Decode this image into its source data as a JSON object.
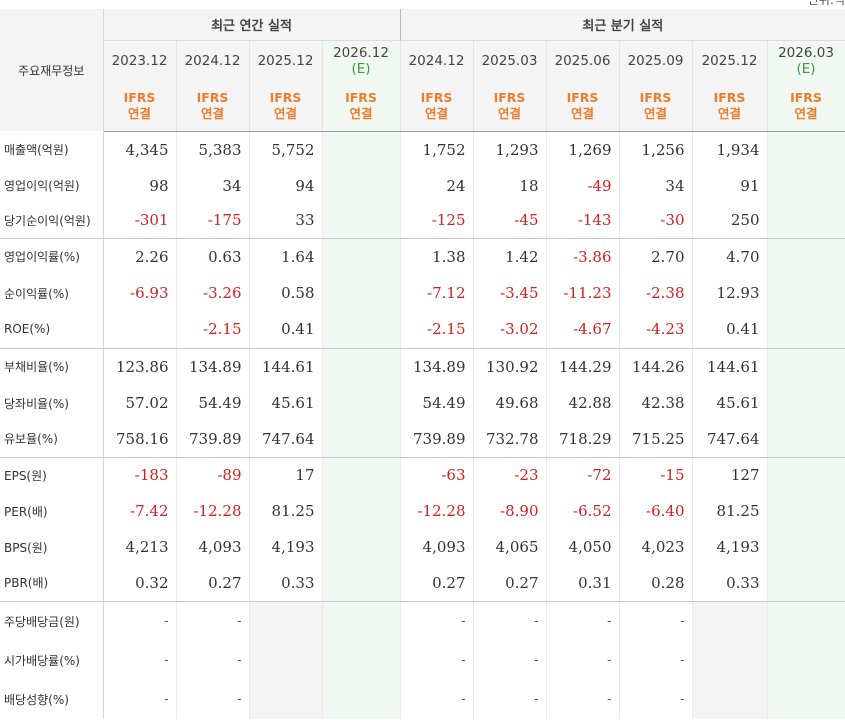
{
  "corner_text": "단위:억",
  "header": {
    "row_label": "주요재무정보",
    "annual_group": "최근 연간 실적",
    "quarter_group": "최근 분기 실적",
    "periods": [
      {
        "period": "2023.12",
        "est": "",
        "basis": [
          "IFRS",
          "연결"
        ]
      },
      {
        "period": "2024.12",
        "est": "",
        "basis": [
          "IFRS",
          "연결"
        ]
      },
      {
        "period": "2025.12",
        "est": "",
        "basis": [
          "IFRS",
          "연결"
        ]
      },
      {
        "period": "2026.12",
        "est": "(E)",
        "basis": [
          "IFRS",
          "연결"
        ]
      },
      {
        "period": "2024.12",
        "est": "",
        "basis": [
          "IFRS",
          "연결"
        ]
      },
      {
        "period": "2025.03",
        "est": "",
        "basis": [
          "IFRS",
          "연결"
        ]
      },
      {
        "period": "2025.06",
        "est": "",
        "basis": [
          "IFRS",
          "연결"
        ]
      },
      {
        "period": "2025.09",
        "est": "",
        "basis": [
          "IFRS",
          "연결"
        ]
      },
      {
        "period": "2025.12",
        "est": "",
        "basis": [
          "IFRS",
          "연결"
        ]
      },
      {
        "period": "2026.03",
        "est": "(E)",
        "basis": [
          "IFRS",
          "연결"
        ]
      }
    ]
  },
  "rows": [
    {
      "label": "매출액(억원)",
      "values": [
        "4,345",
        "5,383",
        "5,752",
        "",
        "1,752",
        "1,293",
        "1,269",
        "1,256",
        "1,934",
        ""
      ]
    },
    {
      "label": "영업이익(억원)",
      "values": [
        "98",
        "34",
        "94",
        "",
        "24",
        "18",
        "-49",
        "34",
        "91",
        ""
      ]
    },
    {
      "label": "당기순이익(억원)",
      "values": [
        "-301",
        "-175",
        "33",
        "",
        "-125",
        "-45",
        "-143",
        "-30",
        "250",
        ""
      ]
    },
    {
      "label": "영업이익률(%)",
      "values": [
        "2.26",
        "0.63",
        "1.64",
        "",
        "1.38",
        "1.42",
        "-3.86",
        "2.70",
        "4.70",
        ""
      ]
    },
    {
      "label": "순이익률(%)",
      "values": [
        "-6.93",
        "-3.26",
        "0.58",
        "",
        "-7.12",
        "-3.45",
        "-11.23",
        "-2.38",
        "12.93",
        ""
      ]
    },
    {
      "label": "ROE(%)",
      "values": [
        "",
        "-2.15",
        "0.41",
        "",
        "-2.15",
        "-3.02",
        "-4.67",
        "-4.23",
        "0.41",
        ""
      ]
    },
    {
      "label": "부채비율(%)",
      "values": [
        "123.86",
        "134.89",
        "144.61",
        "",
        "134.89",
        "130.92",
        "144.29",
        "144.26",
        "144.61",
        ""
      ]
    },
    {
      "label": "당좌비율(%)",
      "values": [
        "57.02",
        "54.49",
        "45.61",
        "",
        "54.49",
        "49.68",
        "42.88",
        "42.38",
        "45.61",
        ""
      ]
    },
    {
      "label": "유보율(%)",
      "values": [
        "758.16",
        "739.89",
        "747.64",
        "",
        "739.89",
        "732.78",
        "718.29",
        "715.25",
        "747.64",
        ""
      ]
    },
    {
      "label": "EPS(원)",
      "values": [
        "-183",
        "-89",
        "17",
        "",
        "-63",
        "-23",
        "-72",
        "-15",
        "127",
        ""
      ]
    },
    {
      "label": "PER(배)",
      "values": [
        "-7.42",
        "-12.28",
        "81.25",
        "",
        "-12.28",
        "-8.90",
        "-6.52",
        "-6.40",
        "81.25",
        ""
      ]
    },
    {
      "label": "BPS(원)",
      "values": [
        "4,213",
        "4,093",
        "4,193",
        "",
        "4,093",
        "4,065",
        "4,050",
        "4,023",
        "4,193",
        ""
      ]
    },
    {
      "label": "PBR(배)",
      "values": [
        "0.32",
        "0.27",
        "0.33",
        "",
        "0.27",
        "0.27",
        "0.31",
        "0.28",
        "0.33",
        ""
      ]
    },
    {
      "label": "주당배당금(원)",
      "values": [
        "-",
        "-",
        "",
        "",
        "-",
        "-",
        "-",
        "-",
        "",
        ""
      ]
    },
    {
      "label": "시가배당률(%)",
      "values": [
        "-",
        "-",
        "",
        "",
        "-",
        "-",
        "-",
        "-",
        "",
        ""
      ]
    },
    {
      "label": "배당성향(%)",
      "values": [
        "-",
        "-",
        "",
        "",
        "-",
        "-",
        "-",
        "-",
        "",
        ""
      ]
    }
  ],
  "colors": {
    "negative": "#d42020",
    "ifrs": "#ee7d2b",
    "estimate_bg": "#f1f8f1",
    "estimate_text": "#3a9b3a",
    "header_bg": "#f4f4f4"
  }
}
